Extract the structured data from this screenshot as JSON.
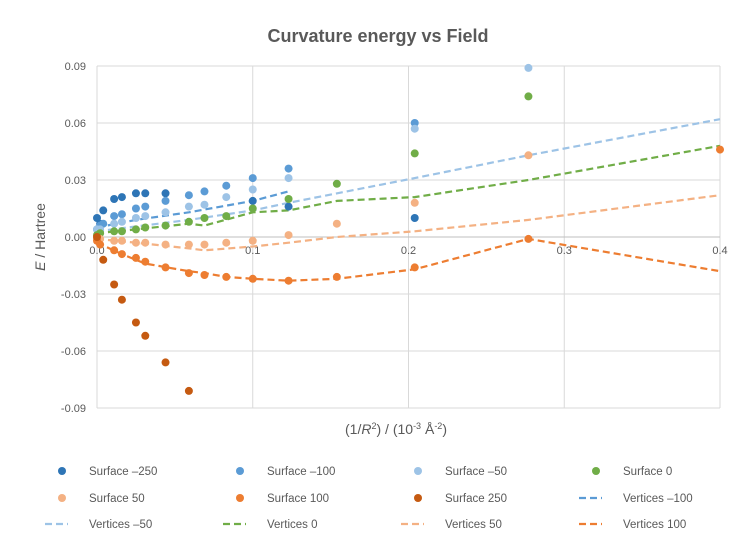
{
  "chart_data": {
    "type": "scatter",
    "title": "Curvature energy vs Field",
    "ylabel_prefix": "E",
    "ylabel_suffix": " / Hartree",
    "xlabel_parts": [
      "(1/",
      "R",
      "2",
      ") / (10",
      "-3",
      " Å",
      "-2",
      ")"
    ],
    "xlim": [
      0,
      0.4
    ],
    "ylim": [
      -0.09,
      0.09
    ],
    "x_ticks": [
      {
        "value": 0,
        "label": "0.0"
      },
      {
        "value": 0.1,
        "label": "0.1"
      },
      {
        "value": 0.2,
        "label": "0.2"
      },
      {
        "value": 0.3,
        "label": "0.3"
      },
      {
        "value": 0.4,
        "label": "0.4"
      }
    ],
    "y_ticks": [
      {
        "value": 0.09,
        "label": "0.09"
      },
      {
        "value": 0.06,
        "label": "0.06"
      },
      {
        "value": 0.03,
        "label": "0.03"
      },
      {
        "value": 0,
        "label": "0.00"
      },
      {
        "value": -0.03,
        "label": "-0.03"
      },
      {
        "value": -0.06,
        "label": "-0.06"
      },
      {
        "value": -0.09,
        "label": "-0.09"
      }
    ],
    "grid": true,
    "legend_position": "bottom",
    "series": [
      {
        "name": "Surface –250",
        "kind": "points",
        "color": "#2e75b6",
        "x": [
          0,
          0.002,
          0.004,
          0.011,
          0.016,
          0.025,
          0.031,
          0.044,
          0.1,
          0.123,
          0.204
        ],
        "y": [
          0.01,
          0.007,
          0.014,
          0.02,
          0.021,
          0.023,
          0.023,
          0.023,
          0.019,
          0.016,
          0.01
        ]
      },
      {
        "name": "Surface –100",
        "kind": "points",
        "color": "#5b9bd5",
        "x": [
          0,
          0.002,
          0.004,
          0.011,
          0.016,
          0.025,
          0.031,
          0.044,
          0.059,
          0.069,
          0.083,
          0.1,
          0.123,
          0.204
        ],
        "y": [
          0.004,
          0.006,
          0.007,
          0.011,
          0.012,
          0.015,
          0.016,
          0.019,
          0.022,
          0.024,
          0.027,
          0.031,
          0.036,
          0.06
        ]
      },
      {
        "name": "Surface –50",
        "kind": "points",
        "color": "#9dc3e6",
        "x": [
          0,
          0.002,
          0.011,
          0.016,
          0.025,
          0.031,
          0.044,
          0.059,
          0.069,
          0.083,
          0.1,
          0.123,
          0.204,
          0.277
        ],
        "y": [
          0.004,
          0.004,
          0.007,
          0.008,
          0.01,
          0.011,
          0.013,
          0.016,
          0.017,
          0.021,
          0.025,
          0.031,
          0.057,
          0.089
        ]
      },
      {
        "name": "Surface 0",
        "kind": "points",
        "color": "#70ad47",
        "x": [
          0,
          0.002,
          0.011,
          0.016,
          0.025,
          0.031,
          0.044,
          0.059,
          0.069,
          0.083,
          0.1,
          0.123,
          0.154,
          0.204,
          0.277
        ],
        "y": [
          0.001,
          0.002,
          0.003,
          0.003,
          0.004,
          0.005,
          0.006,
          0.008,
          0.01,
          0.011,
          0.015,
          0.02,
          0.028,
          0.044,
          0.074
        ]
      },
      {
        "name": "Surface 50",
        "kind": "points",
        "color": "#f4b183",
        "x": [
          0,
          0.002,
          0.011,
          0.016,
          0.025,
          0.031,
          0.044,
          0.059,
          0.069,
          0.083,
          0.1,
          0.123,
          0.154,
          0.204,
          0.277
        ],
        "y": [
          -0.001,
          -0.001,
          -0.002,
          -0.002,
          -0.003,
          -0.003,
          -0.004,
          -0.004,
          -0.004,
          -0.003,
          -0.002,
          0.001,
          0.007,
          0.018,
          0.043
        ]
      },
      {
        "name": "Surface 100",
        "kind": "points",
        "color": "#ed7d31",
        "x": [
          0,
          0.002,
          0.011,
          0.016,
          0.025,
          0.031,
          0.044,
          0.059,
          0.069,
          0.083,
          0.1,
          0.123,
          0.154,
          0.204,
          0.277,
          0.4
        ],
        "y": [
          -0.002,
          -0.004,
          -0.007,
          -0.009,
          -0.011,
          -0.013,
          -0.016,
          -0.019,
          -0.02,
          -0.021,
          -0.022,
          -0.023,
          -0.021,
          -0.016,
          -0.001,
          0.046
        ]
      },
      {
        "name": "Surface 250",
        "kind": "points",
        "color": "#c55a11",
        "x": [
          0,
          0.004,
          0.011,
          0.016,
          0.025,
          0.031,
          0.044,
          0.059
        ],
        "y": [
          0.0,
          -0.012,
          -0.025,
          -0.033,
          -0.045,
          -0.052,
          -0.066,
          -0.081
        ]
      },
      {
        "name": "Vertices –100",
        "kind": "line",
        "color": "#5b9bd5",
        "x": [
          0,
          0.025,
          0.059,
          0.1,
          0.123
        ],
        "y": [
          0.005,
          0.009,
          0.013,
          0.019,
          0.024
        ]
      },
      {
        "name": "Vertices –50",
        "kind": "line",
        "color": "#9dc3e6",
        "x": [
          0,
          0.059,
          0.1,
          0.123,
          0.204,
          0.277,
          0.4
        ],
        "y": [
          0.003,
          0.009,
          0.014,
          0.018,
          0.031,
          0.043,
          0.062
        ]
      },
      {
        "name": "Vertices 0",
        "kind": "line",
        "color": "#70ad47",
        "x": [
          0,
          0.025,
          0.059,
          0.069,
          0.1,
          0.123,
          0.154,
          0.204,
          0.277,
          0.4
        ],
        "y": [
          0.002,
          0.004,
          0.007,
          0.006,
          0.013,
          0.014,
          0.019,
          0.021,
          0.03,
          0.048
        ]
      },
      {
        "name": "Vertices 50",
        "kind": "line",
        "color": "#f4b183",
        "x": [
          0,
          0.025,
          0.059,
          0.069,
          0.1,
          0.123,
          0.154,
          0.204,
          0.277,
          0.4
        ],
        "y": [
          -0.001,
          -0.003,
          -0.006,
          -0.007,
          -0.005,
          -0.003,
          0.0,
          0.003,
          0.009,
          0.022
        ]
      },
      {
        "name": "Vertices 100",
        "kind": "line",
        "color": "#ed7d31",
        "x": [
          0,
          0.016,
          0.031,
          0.059,
          0.069,
          0.083,
          0.1,
          0.123,
          0.154,
          0.204,
          0.277,
          0.4
        ],
        "y": [
          -0.003,
          -0.009,
          -0.014,
          -0.018,
          -0.019,
          -0.021,
          -0.022,
          -0.023,
          -0.022,
          -0.017,
          -0.001,
          -0.018
        ]
      }
    ]
  }
}
